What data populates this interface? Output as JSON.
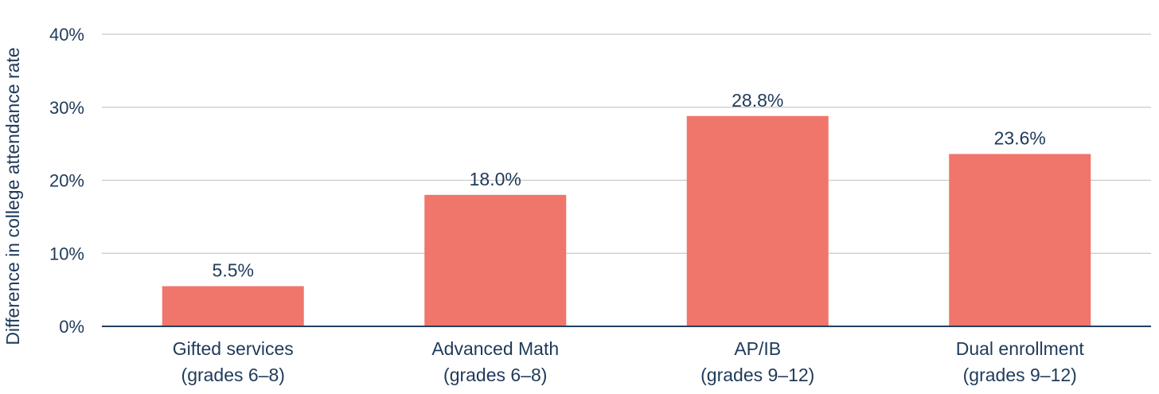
{
  "chart_data": {
    "type": "bar",
    "title": "",
    "xlabel": "",
    "ylabel": "Difference in college attendance rate",
    "categories": [
      [
        "Gifted services",
        "(grades 6–8)"
      ],
      [
        "Advanced Math",
        "(grades 6–8)"
      ],
      [
        "AP/IB",
        "(grades 9–12)"
      ],
      [
        "Dual enrollment",
        "(grades 9–12)"
      ]
    ],
    "values": [
      5.5,
      18.0,
      28.8,
      23.6
    ],
    "data_labels": [
      "5.5%",
      "18.0%",
      "28.8%",
      "23.6%"
    ],
    "ylim": [
      0,
      40
    ],
    "yticks": [
      0,
      10,
      20,
      30,
      40
    ],
    "ytick_labels": [
      "0%",
      "10%",
      "20%",
      "30%",
      "40%"
    ],
    "grid": true,
    "legend": "none",
    "bar_color": "#f0756b",
    "text_color": "#1f3a5a"
  }
}
